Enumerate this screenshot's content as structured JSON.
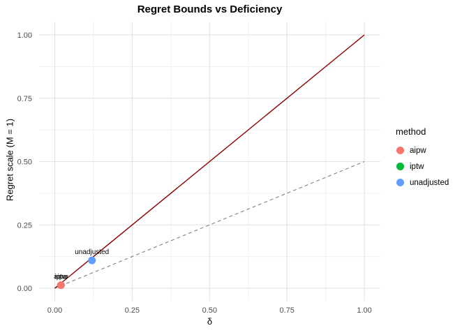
{
  "chart_data": {
    "type": "scatter",
    "title": "Regret Bounds vs Deficiency",
    "xlabel": "δ",
    "ylabel": "Regret scale (M = 1)",
    "xlim": [
      -0.05,
      1.05
    ],
    "ylim": [
      -0.05,
      1.05
    ],
    "x_axis": {
      "ticks": [
        0,
        0.25,
        0.5,
        0.75,
        1.0
      ],
      "tick_labels": [
        "0.00",
        "0.25",
        "0.50",
        "0.75",
        "1.00"
      ]
    },
    "y_axis": {
      "ticks": [
        0,
        0.25,
        0.5,
        0.75,
        1.0
      ],
      "tick_labels": [
        "0.00",
        "0.25",
        "0.50",
        "0.75",
        "1.00"
      ]
    },
    "grid": {
      "on": true,
      "minor_ticks": [
        0.125,
        0.375,
        0.625,
        0.875
      ],
      "major_color": "#E2E2E2",
      "minor_color": "#EFEFEF"
    },
    "lines": [
      {
        "name": "dashed-reference-line",
        "from": [
          0,
          0
        ],
        "to": [
          1,
          0.5
        ],
        "color": "#808080",
        "style": "dashed",
        "width": 1.1
      },
      {
        "name": "solid-bound-line",
        "from": [
          0,
          0
        ],
        "to": [
          1,
          1
        ],
        "color": "#8B0000",
        "style": "solid",
        "width": 1.4
      }
    ],
    "series": [
      {
        "name": "iptw",
        "color": "#00BA38",
        "points": [
          {
            "x": 0.02,
            "y": 0.012,
            "label": "iptw"
          }
        ]
      },
      {
        "name": "aipw",
        "color": "#F8766D",
        "points": [
          {
            "x": 0.02,
            "y": 0.012,
            "label": "aipw"
          }
        ]
      },
      {
        "name": "unadjusted",
        "color": "#619CFF",
        "points": [
          {
            "x": 0.12,
            "y": 0.11,
            "label": "unadjusted"
          }
        ]
      }
    ],
    "legend": {
      "title": "method",
      "position": "right",
      "entries": [
        {
          "label": "aipw",
          "color": "#F8766D"
        },
        {
          "label": "iptw",
          "color": "#00BA38"
        },
        {
          "label": "unadjusted",
          "color": "#619CFF"
        }
      ]
    }
  }
}
